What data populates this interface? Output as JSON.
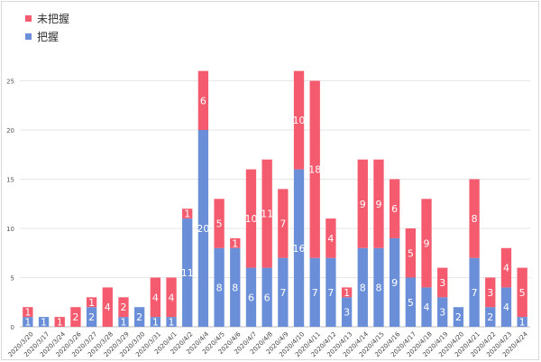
{
  "chart_data": {
    "type": "bar",
    "stacked": true,
    "categories": [
      "2020/3/20",
      "2020/3/17",
      "2020/3/24",
      "2020/3/26",
      "2020/3/27",
      "2020/3/28",
      "2020/3/29",
      "2020/3/30",
      "2020/3/31",
      "2020/4/1",
      "2020/4/2",
      "2020/4/4",
      "2020/4/5",
      "2020/4/6",
      "2020/4/7",
      "2020/4/8",
      "2020/4/9",
      "2020/4/10",
      "2020/4/11",
      "2020/4/12",
      "2020/4/13",
      "2020/4/14",
      "2020/4/15",
      "2020/4/16",
      "2020/4/17",
      "2020/4/18",
      "2020/4/19",
      "2020/4/20",
      "2020/4/21",
      "2020/4/22",
      "2020/4/23",
      "2020/4/24"
    ],
    "series": [
      {
        "name": "把握",
        "color": "#6a8fd8",
        "values": [
          1,
          1,
          0,
          0,
          2,
          0,
          1,
          2,
          1,
          1,
          11,
          20,
          8,
          8,
          6,
          6,
          7,
          16,
          7,
          7,
          3,
          8,
          8,
          9,
          5,
          4,
          3,
          2,
          7,
          2,
          4,
          1
        ]
      },
      {
        "name": "未把握",
        "color": "#f45b6e",
        "values": [
          1,
          0,
          1,
          2,
          1,
          4,
          2,
          0,
          4,
          4,
          1,
          6,
          5,
          1,
          10,
          11,
          7,
          10,
          18,
          4,
          1,
          9,
          9,
          6,
          5,
          9,
          3,
          0,
          8,
          3,
          4,
          5
        ]
      }
    ],
    "legend": {
      "position": "top-left",
      "order": [
        "未把握",
        "把握"
      ]
    },
    "yticks": [
      "0",
      "5",
      "10",
      "15",
      "20",
      "25"
    ],
    "ylim": [
      0,
      30
    ],
    "grid": true
  }
}
